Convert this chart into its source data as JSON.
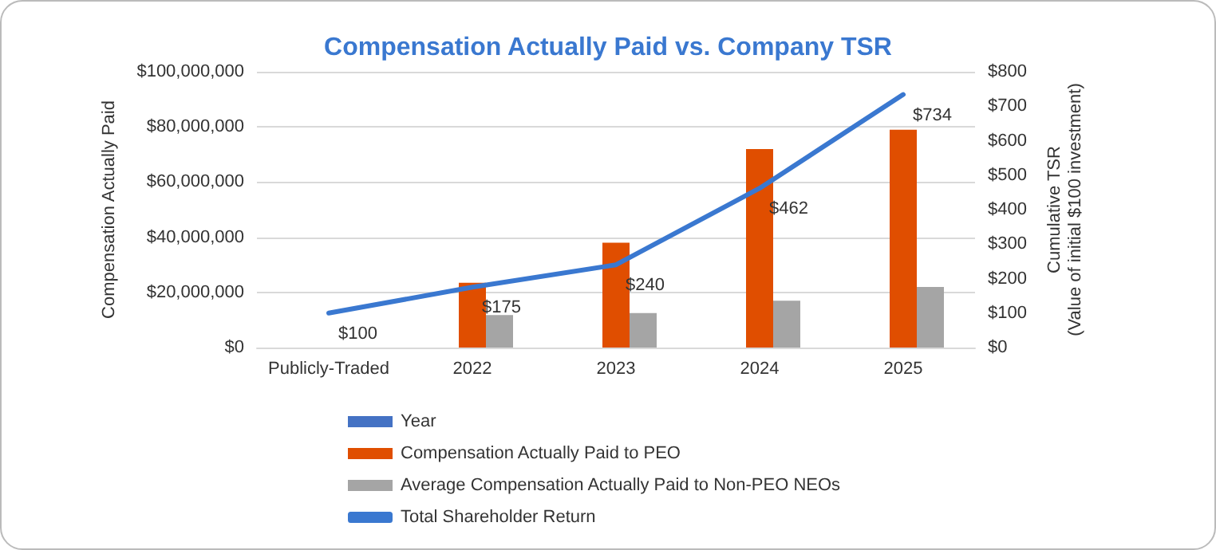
{
  "chart_data": {
    "type": "bar",
    "title": "Compensation Actually Paid vs. Company TSR",
    "ylabel": "Compensation Actually Paid",
    "y2label": "Cumulative TSR\n(Value of initial $100 investment)",
    "categories": [
      "Publicly-Traded",
      "2022",
      "2023",
      "2024",
      "2025"
    ],
    "series": [
      {
        "name": "Year",
        "color": "#4472c4",
        "values": [
          null,
          null,
          null,
          null,
          null
        ]
      },
      {
        "name": "Compensation Actually Paid to PEO",
        "color": "#e04e00",
        "values": [
          null,
          23500000,
          38000000,
          72000000,
          79000000
        ]
      },
      {
        "name": "Average Compensation Actually Paid to Non-PEO NEOs",
        "color": "#a5a5a5",
        "values": [
          null,
          11800000,
          12500000,
          17000000,
          22000000
        ]
      },
      {
        "name": "Total Shareholder Return",
        "type": "line",
        "axis": "y2",
        "color": "#3a78d0",
        "values": [
          100,
          175,
          240,
          462,
          734
        ],
        "value_labels": [
          "$100",
          "$175",
          "$240",
          "$462",
          "$734"
        ],
        "marker": "none"
      }
    ],
    "ylim": [
      0,
      100000000
    ],
    "yticks": [
      {
        "value": 0,
        "label": "$0"
      },
      {
        "value": 20000000,
        "label": "$20,000,000"
      },
      {
        "value": 40000000,
        "label": "$40,000,000"
      },
      {
        "value": 60000000,
        "label": "$60,000,000"
      },
      {
        "value": 80000000,
        "label": "$80,000,000"
      },
      {
        "value": 100000000,
        "label": "$100,000,000"
      }
    ],
    "y2lim": [
      0,
      800
    ],
    "y2ticks": [
      {
        "value": 0,
        "label": "$0"
      },
      {
        "value": 100,
        "label": "$100"
      },
      {
        "value": 200,
        "label": "$200"
      },
      {
        "value": 300,
        "label": "$300"
      },
      {
        "value": 400,
        "label": "$400"
      },
      {
        "value": 500,
        "label": "$500"
      },
      {
        "value": 600,
        "label": "$600"
      },
      {
        "value": 700,
        "label": "$700"
      },
      {
        "value": 800,
        "label": "$800"
      }
    ],
    "grid": "y",
    "legend": "bottom"
  }
}
